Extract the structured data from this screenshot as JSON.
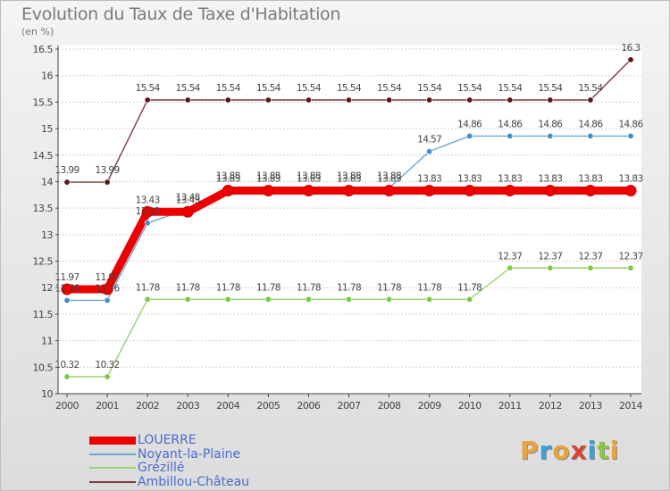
{
  "title": "Evolution du Taux de Taxe d'Habitation",
  "subtitle": "(en %)",
  "logo": {
    "text": "Proxiti",
    "letter_colors": [
      "#e8a33a",
      "#3aa0d8",
      "#e8a33a",
      "#d8442e",
      "#3aa0d8",
      "#8cc63f",
      "#e8a33a"
    ]
  },
  "chart_data": {
    "type": "line",
    "title": "Evolution du Taux de Taxe d'Habitation",
    "ylabel": "(en %)",
    "xlabel": "",
    "x": [
      2000,
      2001,
      2002,
      2003,
      2004,
      2005,
      2006,
      2007,
      2008,
      2009,
      2010,
      2011,
      2012,
      2013,
      2014
    ],
    "ylim": [
      10,
      16.5
    ],
    "y_ticks": [
      10,
      10.5,
      11,
      11.5,
      12,
      12.5,
      13,
      13.5,
      14,
      14.5,
      15,
      15.5,
      16,
      16.5
    ],
    "y_tick_labels": [
      "10",
      "10.5",
      "11",
      "11.5",
      "12",
      "12.5",
      "13",
      "13.5",
      "14",
      "14.5",
      "15",
      "15.5",
      "16",
      "16.5"
    ],
    "grid": "horizontal",
    "legend": "bottom-left",
    "series": [
      {
        "name": "Ambillou-Château",
        "color": "#7f3a3a",
        "point_color": "#5a1616",
        "values": [
          13.99,
          13.99,
          15.54,
          15.54,
          15.54,
          15.54,
          15.54,
          15.54,
          15.54,
          15.54,
          15.54,
          15.54,
          15.54,
          15.54,
          16.3
        ],
        "labels": [
          "13.99",
          "13.99",
          "15.54",
          "15.54",
          "15.54",
          "15.54",
          "15.54",
          "15.54",
          "15.54",
          "15.54",
          "15.54",
          "15.54",
          "15.54",
          "15.54",
          "16.3"
        ]
      },
      {
        "name": "Grézillé",
        "color": "#99d170",
        "point_color": "#7ac943",
        "values": [
          10.32,
          10.32,
          11.78,
          11.78,
          11.78,
          11.78,
          11.78,
          11.78,
          11.78,
          11.78,
          11.78,
          12.37,
          12.37,
          12.37,
          12.37
        ],
        "labels": [
          "10.32",
          "10.32",
          "11.78",
          "11.78",
          "11.78",
          "11.78",
          "11.78",
          "11.78",
          "11.78",
          "11.78",
          "11.78",
          "12.37",
          "12.37",
          "12.37",
          "12.37"
        ]
      },
      {
        "name": "Noyant-la-Plaine",
        "color": "#6aa6d8",
        "point_color": "#3f8fcf",
        "values": [
          11.76,
          11.76,
          13.22,
          13.48,
          13.88,
          13.88,
          13.88,
          13.88,
          13.88,
          14.57,
          14.86,
          14.86,
          14.86,
          14.86,
          14.86
        ],
        "labels": [
          "11.76",
          "11.76",
          "13.22",
          "13.48",
          "13.88",
          "13.88",
          "13.88",
          "13.88",
          "13.88",
          "14.57",
          "14.86",
          "14.86",
          "14.86",
          "14.86",
          "14.86"
        ]
      },
      {
        "name": "LOUERRE",
        "color": "#ee0000",
        "point_color": "#ee0000",
        "values": [
          11.97,
          11.97,
          13.43,
          13.43,
          13.83,
          13.83,
          13.83,
          13.83,
          13.83,
          13.83,
          13.83,
          13.83,
          13.83,
          13.83,
          13.83
        ],
        "labels": [
          "11.97",
          "11.97",
          "13.43",
          "13.43",
          "13.83",
          "13.83",
          "13.83",
          "13.83",
          "13.83",
          "13.83",
          "13.83",
          "13.83",
          "13.83",
          "13.83",
          "13.83"
        ]
      }
    ],
    "legend_entries": [
      {
        "name": "LOUERRE",
        "color": "#ee0000",
        "text_color": "#4a6ad0"
      },
      {
        "name": "Noyant-la-Plaine",
        "color": "#6aa6d8",
        "text_color": "#4a6ad0"
      },
      {
        "name": "Grézillé",
        "color": "#99d170",
        "text_color": "#4a6ad0"
      },
      {
        "name": "Ambillou-Château",
        "color": "#7f3a3a",
        "text_color": "#4a6ad0"
      }
    ]
  }
}
